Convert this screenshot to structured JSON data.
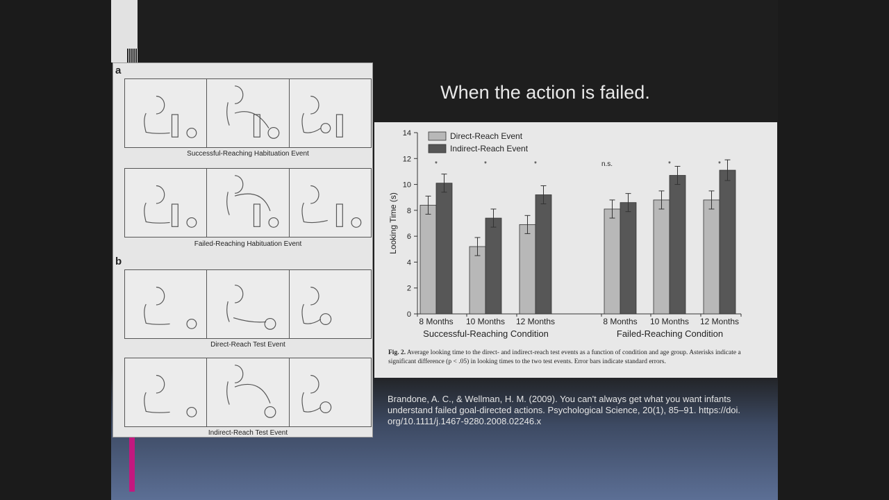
{
  "slide": {
    "title": "When the action is failed.",
    "reference": "Brandone, A. C., & Wellman, H. M. (2009). You can't always get what you want infants understand failed goal-directed actions. Psychological Science, 20(1), 85–91. https://doi. org/10.1111/j.1467-9280.2008.02246.x"
  },
  "left_figure": {
    "section_a": "a",
    "section_b": "b",
    "captions": [
      "Successful-Reaching Habituation Event",
      "Failed-Reaching Habituation Event",
      "Direct-Reach Test Event",
      "Indirect-Reach Test Event"
    ]
  },
  "figure_caption": {
    "label": "Fig. 2.",
    "text": " Average looking time to the direct- and indirect-reach test events as a function of condition and age group. Asterisks indicate a significant difference (p < .05) in looking times to the two test events. Error bars indicate standard errors."
  },
  "chart_data": {
    "type": "bar",
    "ylabel": "Looking Time (s)",
    "ylim": [
      0,
      14
    ],
    "yticks": [
      0,
      2,
      4,
      6,
      8,
      10,
      12,
      14
    ],
    "legend": [
      "Direct-Reach Event",
      "Indirect-Reach Event"
    ],
    "groups": [
      {
        "condition": "Successful-Reaching Condition",
        "categories": [
          "8 Months",
          "10 Months",
          "12 Months"
        ],
        "direct": [
          8.4,
          5.2,
          6.9
        ],
        "indirect": [
          10.1,
          7.4,
          9.2
        ],
        "direct_err": [
          0.7,
          0.7,
          0.7
        ],
        "indirect_err": [
          0.7,
          0.7,
          0.7
        ],
        "significance": [
          "*",
          "*",
          "*"
        ]
      },
      {
        "condition": "Failed-Reaching Condition",
        "categories": [
          "8 Months",
          "10 Months",
          "12 Months"
        ],
        "direct": [
          8.1,
          8.8,
          8.8
        ],
        "indirect": [
          8.6,
          10.7,
          11.1
        ],
        "direct_err": [
          0.7,
          0.7,
          0.7
        ],
        "indirect_err": [
          0.7,
          0.7,
          0.8
        ],
        "significance": [
          "n.s.",
          "*",
          "*"
        ]
      }
    ],
    "colors": {
      "direct": "#b8b8b8",
      "indirect": "#575757"
    }
  }
}
